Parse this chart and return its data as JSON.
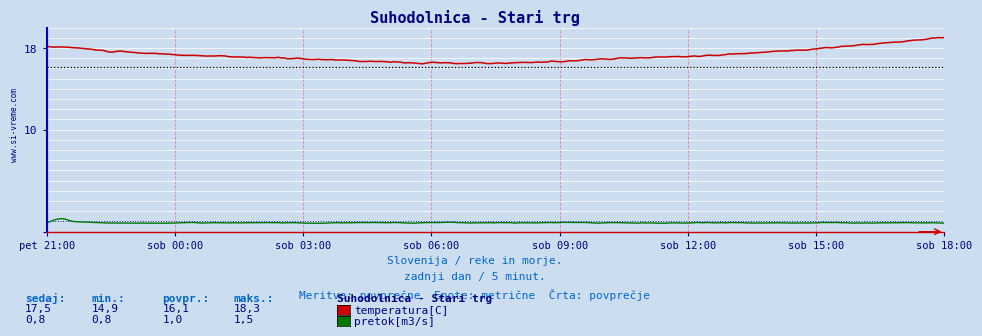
{
  "title": "Suhodolnica - Stari trg",
  "bg_color": "#ccddef",
  "plot_bg_color": "#ccddef",
  "grid_color_major": "#ffffff",
  "grid_color_minor": "#ffaaaa",
  "x_labels": [
    "pet 21:00",
    "sob 00:00",
    "sob 03:00",
    "sob 06:00",
    "sob 09:00",
    "sob 12:00",
    "sob 15:00",
    "sob 18:00"
  ],
  "x_ticks_count": 8,
  "y_min": 0,
  "y_max": 20,
  "temp_avg": 16.1,
  "flow_avg": 1.0,
  "temp_color": "#cc0000",
  "flow_color": "#007700",
  "black_avg_color": "#000000",
  "subtitle1": "Slovenija / reke in morje.",
  "subtitle2": "zadnji dan / 5 minut.",
  "subtitle3": "Meritve: povprečne  Enote: metrične  Črta: povprečje",
  "legend_title": "Suhodolnica - Stari trg",
  "legend_items": [
    {
      "label": "temperatura[C]",
      "color": "#cc0000"
    },
    {
      "label": "pretok[m3/s]",
      "color": "#007700"
    }
  ],
  "stats_headers": [
    "sedaj:",
    "min.:",
    "povpr.:",
    "maks.:"
  ],
  "stats_temp": [
    "17,5",
    "14,9",
    "16,1",
    "18,3"
  ],
  "stats_flow": [
    "0,8",
    "0,8",
    "1,0",
    "1,5"
  ],
  "side_text": "www.si-vreme.com"
}
